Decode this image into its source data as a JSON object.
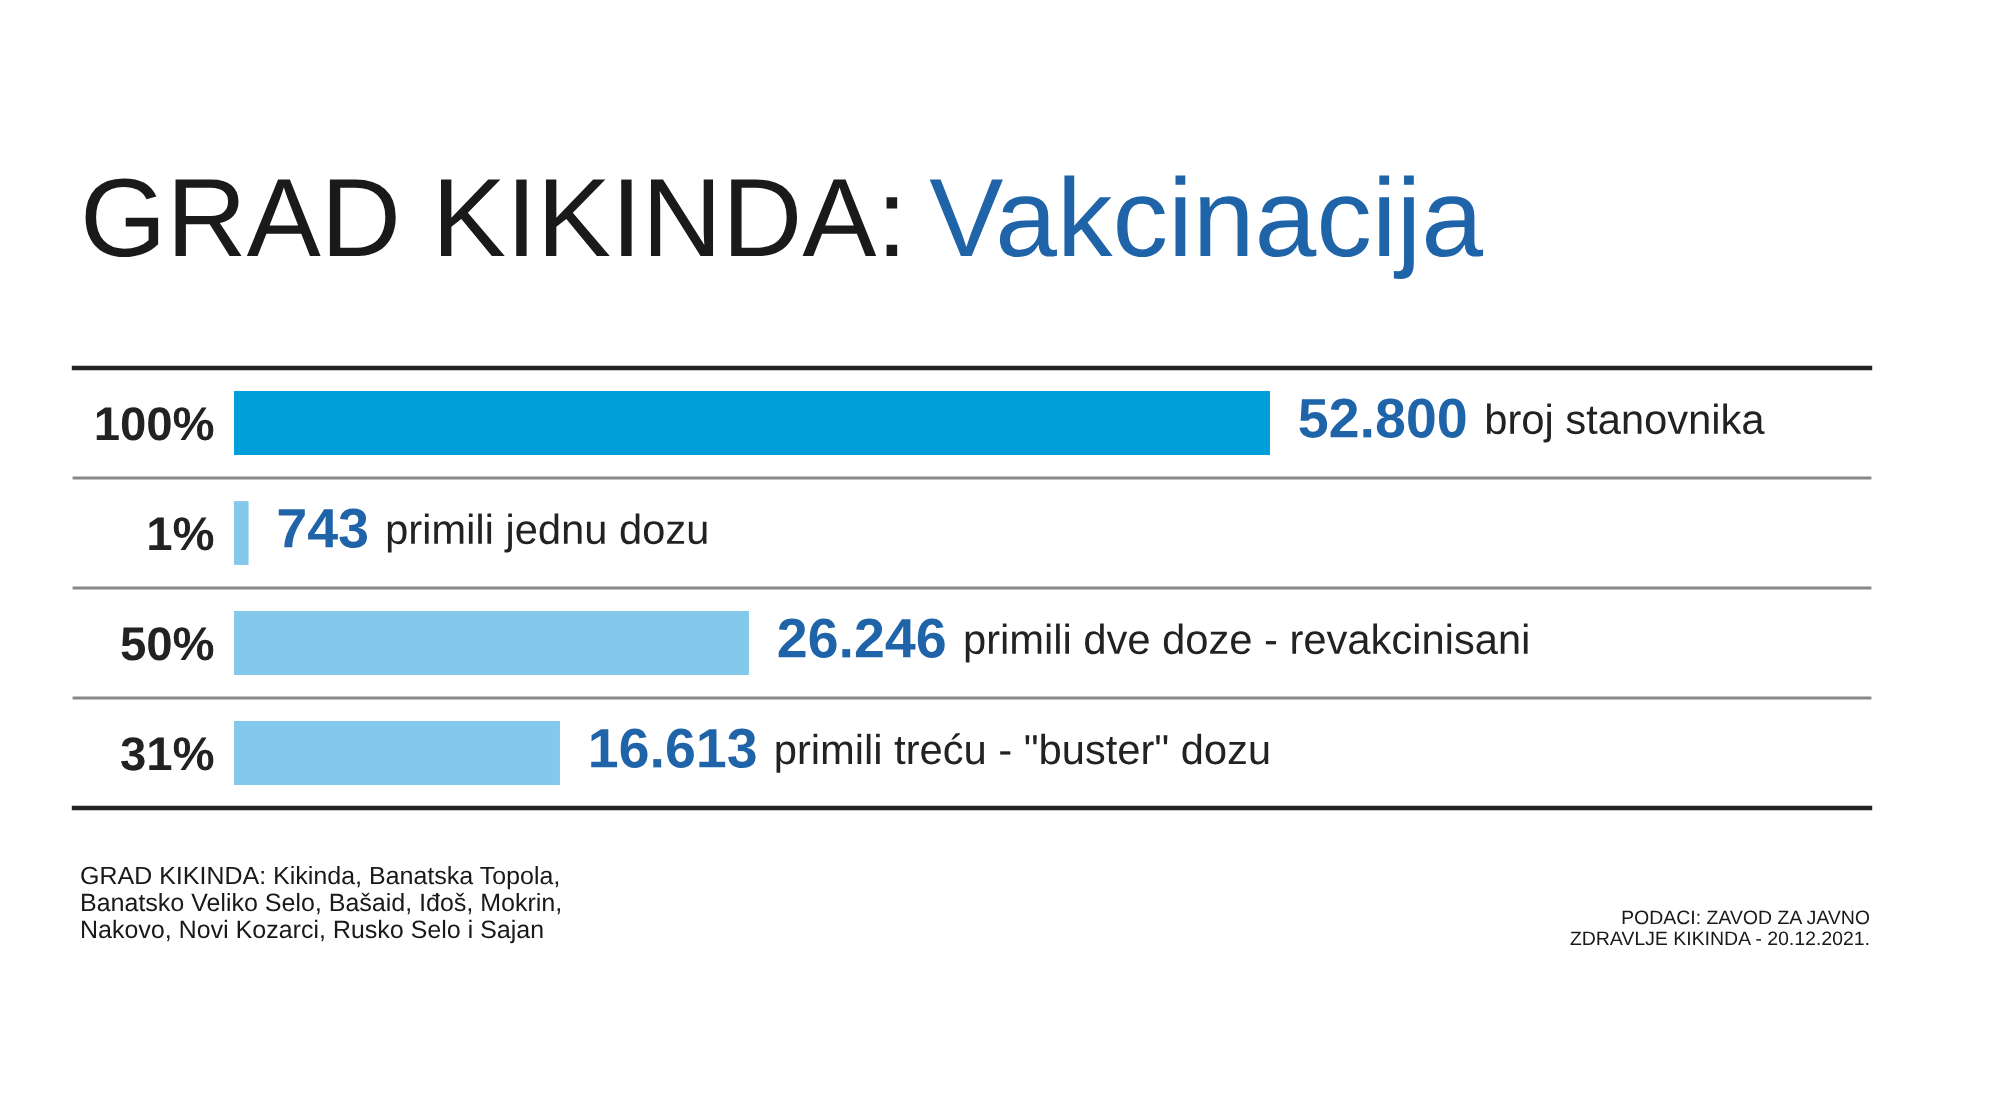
{
  "chart_data": {
    "type": "bar",
    "orientation": "horizontal",
    "tick_labels": "y",
    "title": "GRAD KIKINDA:",
    "subtitle": "Vakcinacija",
    "categories": [
      "100%",
      "1%",
      "50%",
      "31%"
    ],
    "values": [
      52800,
      743,
      26246,
      16613
    ],
    "colors": [
      "#009fda",
      "#84c9eb",
      "#84c9eb",
      "#84c9eb"
    ],
    "value_labels": [
      "52.800 broj stanovnika",
      "743 primili jednu dozu",
      "26.246 primili dve doze - revakcinisani",
      "16.613 primili treću - \"buster\" dozu"
    ],
    "annotations": [
      "GRAD KIKINDA: Kikinda, Banatska Topola,\nBanatsko Veliko Selo, Bašaid, Iđoš, Mokrin,\nNakovo, Novi Kozarci, Rusko Selo i Sajan",
      "PODACI: ZAVOD ZA JAVNO\nZDRAVLJE KIKINDA - 20.12.2021."
    ]
  }
}
